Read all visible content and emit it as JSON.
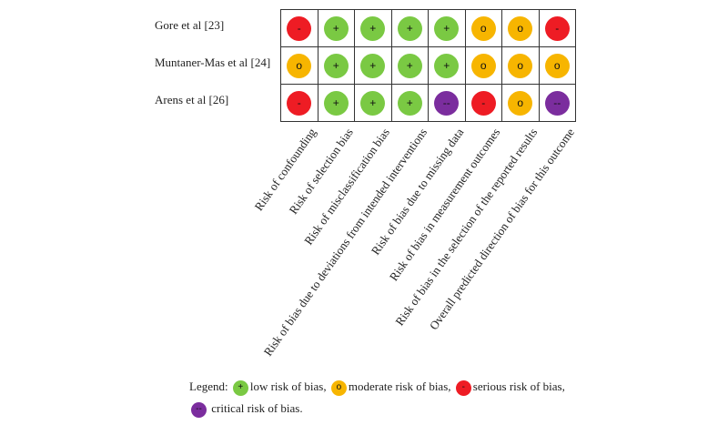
{
  "studies": [
    "Gore et al [23]",
    "Muntaner-Mas et al [24]",
    "Arens et al [26]"
  ],
  "domains": [
    "Risk of confounding",
    "Risk of selection bias",
    "Risk of misclassification bias",
    "Risk of bias due to deviations from intended interventions",
    "Risk of bias due to missing data",
    "Risk of bias in measurement outcomes",
    "Risk of bias in the selection of the reported results",
    "Overall predicted direction of bias for this outcome"
  ],
  "ratings": [
    [
      "-",
      "+",
      "+",
      "+",
      "+",
      "o",
      "o",
      "-"
    ],
    [
      "o",
      "+",
      "+",
      "+",
      "+",
      "o",
      "o",
      "o"
    ],
    [
      "-",
      "+",
      "+",
      "+",
      "--",
      "-",
      "o",
      "--"
    ]
  ],
  "colors": {
    "+": "#7ac943",
    "o": "#f7b500",
    "-": "#ee1c24",
    "--": "#7b2d9e"
  },
  "legend": {
    "prefix": "Legend:",
    "low": "low risk of bias,",
    "moderate": "moderate risk of bias,",
    "serious": "serious risk of bias,",
    "critical": "critical risk of bias.",
    "sym_low": "+",
    "sym_moderate": "o",
    "sym_serious": "-",
    "sym_critical": "--"
  }
}
